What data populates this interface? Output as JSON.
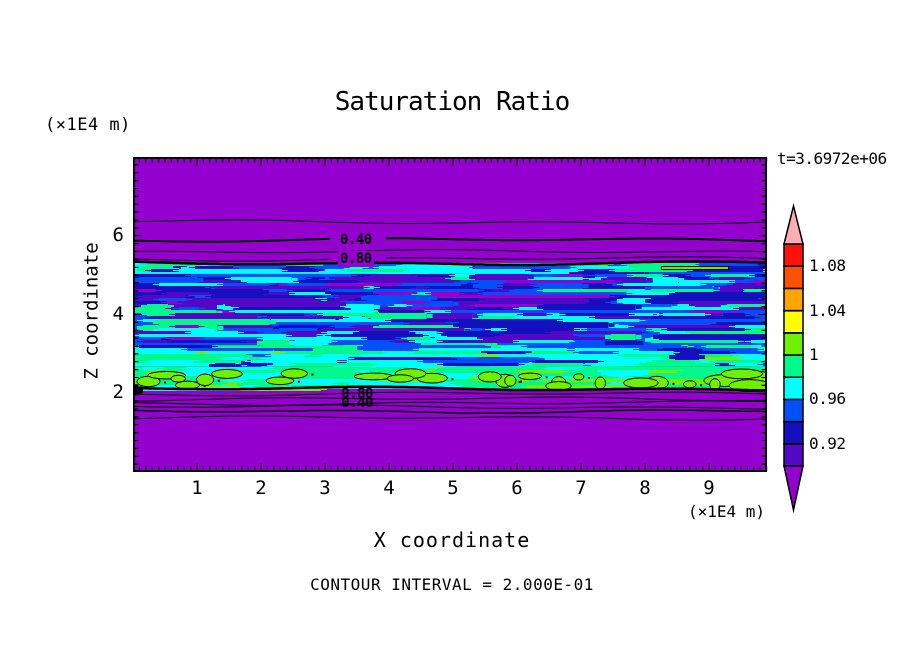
{
  "figure": {
    "title": "Saturation Ratio",
    "time_annotation": "t=3.6972e+06",
    "z_axis_unit": "(×1E4 m)",
    "x_axis_unit": "(×1E4 m)",
    "z_axis_title": "Z coordinate",
    "x_axis_title": "X coordinate",
    "contour_note": "CONTOUR INTERVAL = 2.000E-01"
  },
  "chart_data": {
    "type": "heatmap",
    "subtype": "filled-contour-cross-section",
    "title": "Saturation Ratio",
    "xlabel": "X coordinate",
    "ylabel": "Z coordinate",
    "x_unit": "(×1E4 m)",
    "z_unit": "(×1E4 m)",
    "time_annotation": "t=3.6972e+06",
    "contour_interval_note": "CONTOUR INTERVAL = 2.000E-01",
    "line_contour_interval": 0.2,
    "fill_contour_interval": 0.02,
    "x_range": [
      0,
      9.9
    ],
    "z_range": [
      0,
      8
    ],
    "x_ticks": [
      1,
      2,
      3,
      4,
      5,
      6,
      7,
      8,
      9
    ],
    "z_ticks": [
      2,
      4,
      6
    ],
    "grid": false,
    "legend_position": "right-colorbar",
    "colorbar": {
      "levels": [
        0.9,
        0.92,
        0.94,
        0.96,
        0.98,
        1.0,
        1.02,
        1.04,
        1.06,
        1.08,
        1.1
      ],
      "colors": [
        "#5208C6",
        "#1410C0",
        "#0050F8",
        "#00FFFF",
        "#00F88C",
        "#70F000",
        "#FFFF00",
        "#FFA500",
        "#FF5000",
        "#FF1008"
      ],
      "under_color": "#9400CE",
      "over_color": "#FFACB4",
      "labels": [
        {
          "level": 1.08,
          "text": "1.08"
        },
        {
          "level": 1.04,
          "text": "1.04"
        },
        {
          "level": 1.0,
          "text": "1"
        },
        {
          "level": 0.96,
          "text": "0.96"
        },
        {
          "level": 0.92,
          "text": "0.92"
        }
      ]
    },
    "background_color": "#9400CE",
    "line_contours": [
      {
        "z": 6.35,
        "lw": 1
      },
      {
        "z": 5.89,
        "lw": 2,
        "label": "0.40",
        "label_x": 3.5,
        "label_bg": true
      },
      {
        "z": 5.59,
        "lw": 1
      },
      {
        "z": 5.41,
        "lw": 1,
        "label": "0.80",
        "label_x": 3.5,
        "label_bg": true
      },
      {
        "z": 5.31,
        "lw": 2.5
      },
      {
        "z": 2.11,
        "lw": 2.5
      },
      {
        "z": 1.98,
        "lw": 1,
        "label": "0.80",
        "label_x": 3.52
      },
      {
        "z": 1.85,
        "lw": 1
      },
      {
        "z": 1.75,
        "lw": 1,
        "label": "0.40",
        "label_x": 3.52
      },
      {
        "z": 1.65,
        "lw": 1
      },
      {
        "z": 1.55,
        "lw": 1.5
      },
      {
        "z": 1.37,
        "lw": 1
      }
    ],
    "saturation_band": {
      "z_top": 5.31,
      "z_bottom": 2.11,
      "zones": [
        {
          "z_top": 5.31,
          "z_bottom": 5.03,
          "base": "#00FFFF",
          "streaks": [
            {
              "c": "#00F88C",
              "w": 0.32
            },
            {
              "c": "#0050F8",
              "w": 0.2
            },
            {
              "c": "#1410C0",
              "w": 0.18
            },
            {
              "c": "#00FFFF",
              "w": 0.2
            },
            {
              "c": "#70F000",
              "w": 0.1
            }
          ]
        },
        {
          "z_top": 5.03,
          "z_bottom": 4.11,
          "base": "#1410C0",
          "streaks": [
            {
              "c": "#5208C6",
              "w": 0.26
            },
            {
              "c": "#9400CE",
              "w": 0.16
            },
            {
              "c": "#0050F8",
              "w": 0.26
            },
            {
              "c": "#00FFFF",
              "w": 0.12
            },
            {
              "c": "#1410C0",
              "w": 0.16
            },
            {
              "c": "#00F88C",
              "w": 0.04
            }
          ]
        },
        {
          "z_top": 4.11,
          "z_bottom": 3.22,
          "base": "#0050F8",
          "streaks": [
            {
              "c": "#1410C0",
              "w": 0.28
            },
            {
              "c": "#00FFFF",
              "w": 0.24
            },
            {
              "c": "#5208C6",
              "w": 0.1
            },
            {
              "c": "#00F88C",
              "w": 0.12
            },
            {
              "c": "#0050F8",
              "w": 0.2
            },
            {
              "c": "#9400CE",
              "w": 0.06
            }
          ]
        },
        {
          "z_top": 3.22,
          "z_bottom": 2.67,
          "base": "#00F88C",
          "streaks": [
            {
              "c": "#00FFFF",
              "w": 0.4
            },
            {
              "c": "#0050F8",
              "w": 0.2
            },
            {
              "c": "#1410C0",
              "w": 0.1
            },
            {
              "c": "#00F88C",
              "w": 0.25
            },
            {
              "c": "#70F000",
              "w": 0.05
            }
          ]
        },
        {
          "z_top": 2.67,
          "z_bottom": 2.11,
          "base": "#00F88C",
          "streaks": [
            {
              "c": "#00F88C",
              "w": 0.45
            },
            {
              "c": "#00FFFF",
              "w": 0.25
            },
            {
              "c": "#70F000",
              "w": 0.3
            }
          ],
          "blobs": {
            "count": 30,
            "color": "#70F000",
            "outline": "#000000"
          }
        }
      ]
    },
    "features": {
      "edge_blob": {
        "x": 0,
        "z": 2.1,
        "color": "#000000"
      },
      "top_streak": {
        "x0": 8.25,
        "x1": 9.3,
        "z": 5.18,
        "color": "#70F000"
      }
    }
  }
}
